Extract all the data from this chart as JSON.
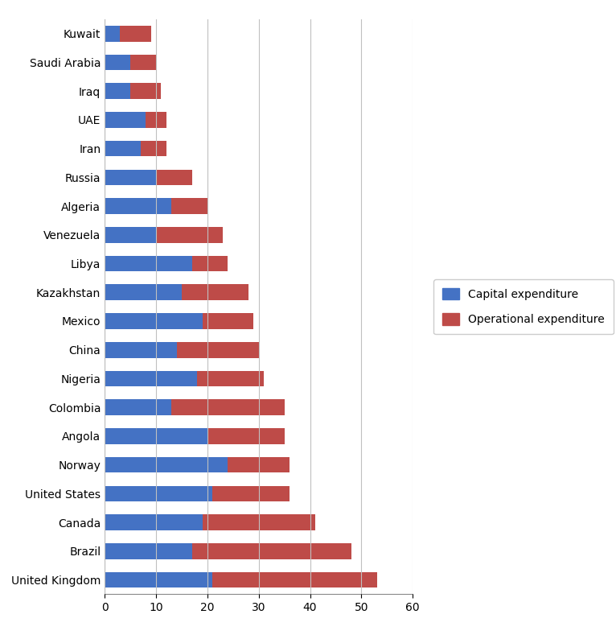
{
  "countries": [
    "United Kingdom",
    "Brazil",
    "Canada",
    "United States",
    "Norway",
    "Angola",
    "Colombia",
    "Nigeria",
    "China",
    "Mexico",
    "Kazakhstan",
    "Libya",
    "Venezuela",
    "Algeria",
    "Russia",
    "Iran",
    "UAE",
    "Iraq",
    "Saudi Arabia",
    "Kuwait"
  ],
  "capital_expenditure": [
    21,
    17,
    19,
    21,
    24,
    20,
    13,
    18,
    14,
    19,
    15,
    17,
    10,
    13,
    10,
    7,
    8,
    5,
    5,
    3
  ],
  "operational_expenditure": [
    32,
    31,
    22,
    15,
    12,
    15,
    22,
    13,
    16,
    10,
    13,
    7,
    13,
    7,
    7,
    5,
    4,
    6,
    5,
    6
  ],
  "capital_color": "#4472C4",
  "operational_color": "#BE4B48",
  "legend_labels": [
    "Capital expenditure",
    "Operational expenditure"
  ],
  "xlim": [
    0,
    60
  ],
  "xticks": [
    0,
    10,
    20,
    30,
    40,
    50,
    60
  ],
  "background_color": "#FFFFFF",
  "grid_color": "#C0C0C0",
  "bar_height": 0.55,
  "figsize": [
    7.66,
    7.94
  ],
  "dpi": 100
}
